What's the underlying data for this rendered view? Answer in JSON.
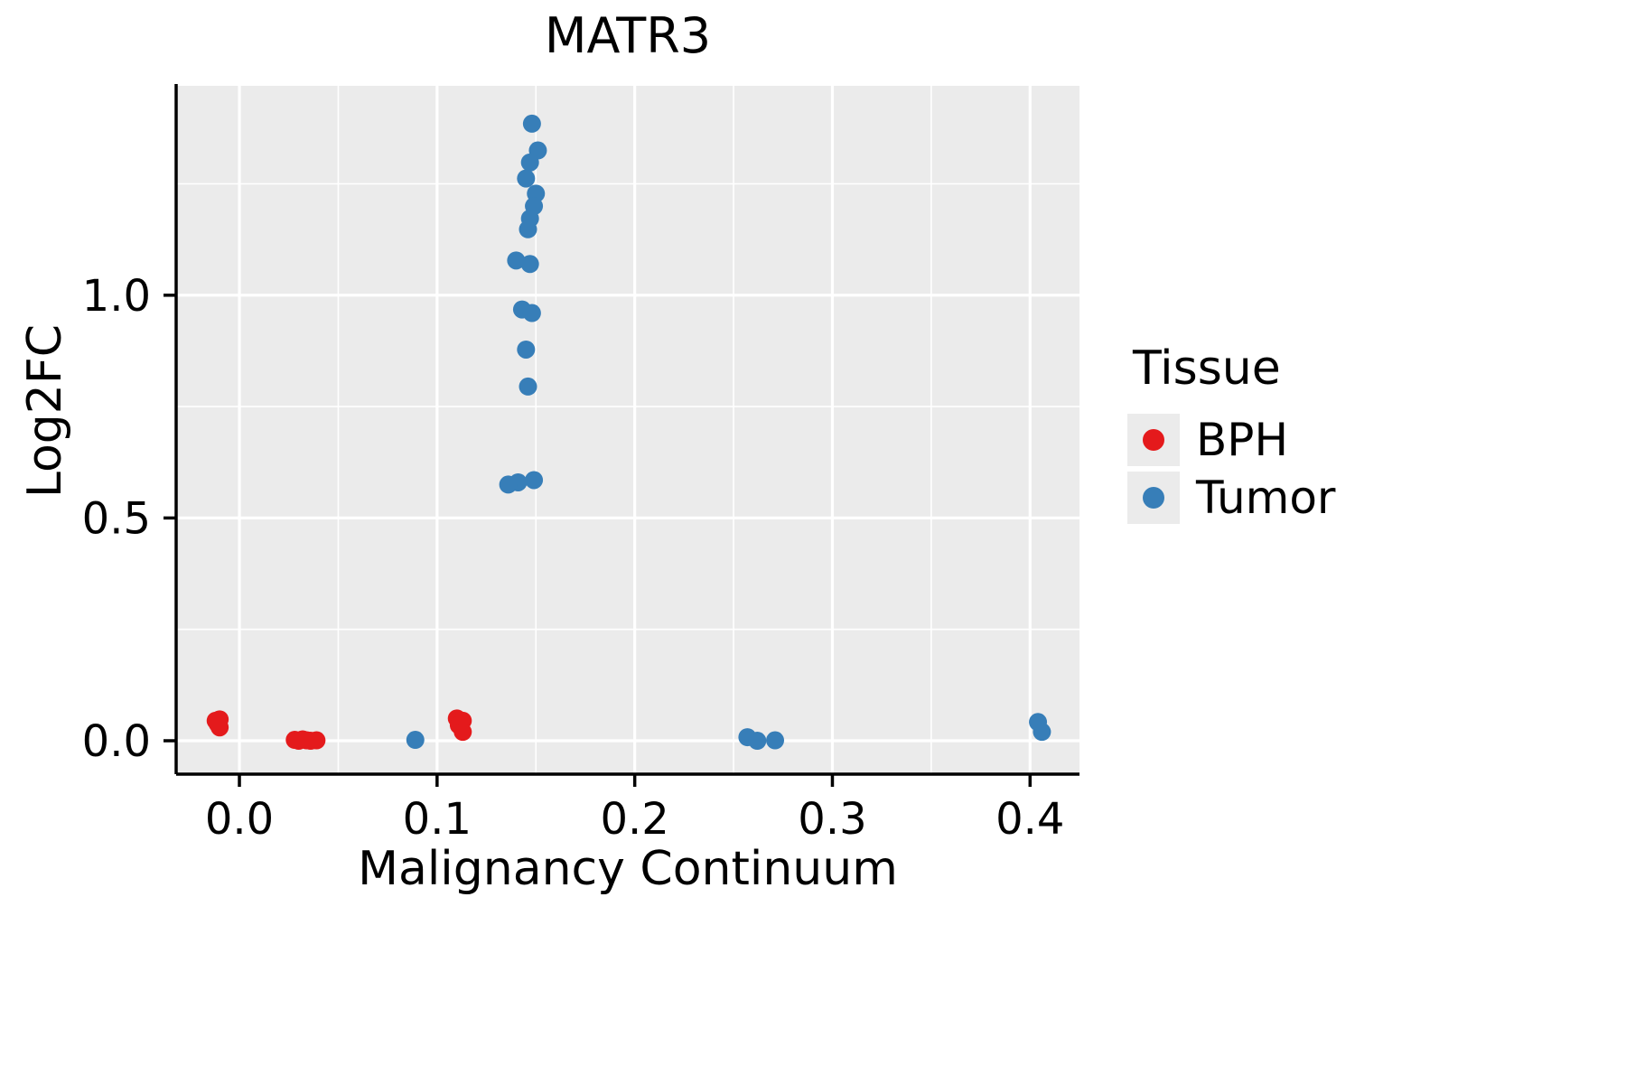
{
  "chart_data": {
    "type": "scatter",
    "title": "MATR3",
    "xlabel": "Malignancy Continuum",
    "ylabel": "Log2FC",
    "xlim": [
      -0.032,
      0.425
    ],
    "ylim": [
      -0.075,
      1.47
    ],
    "x_ticks": [
      0.0,
      0.1,
      0.2,
      0.3,
      0.4
    ],
    "x_tick_labels": [
      "0.0",
      "0.1",
      "0.2",
      "0.3",
      "0.4"
    ],
    "y_ticks": [
      0.0,
      0.5,
      1.0
    ],
    "y_tick_labels": [
      "0.0",
      "0.5",
      "1.0"
    ],
    "grid": "white major and minor gridlines on gray panel",
    "legend_position": "right",
    "series": [
      {
        "name": "BPH",
        "color": "#E41A1C",
        "points": [
          [
            -0.012,
            0.045
          ],
          [
            -0.01,
            0.048
          ],
          [
            -0.011,
            0.038
          ],
          [
            -0.01,
            0.03
          ],
          [
            0.028,
            0.002
          ],
          [
            0.03,
            0.0
          ],
          [
            0.032,
            0.003
          ],
          [
            0.034,
            0.001
          ],
          [
            0.036,
            0.0
          ],
          [
            0.039,
            0.001
          ],
          [
            0.11,
            0.05
          ],
          [
            0.113,
            0.045
          ],
          [
            0.111,
            0.035
          ],
          [
            0.113,
            0.02
          ]
        ]
      },
      {
        "name": "Tumor",
        "color": "#377EB8",
        "points": [
          [
            0.089,
            0.002
          ],
          [
            0.148,
            1.385
          ],
          [
            0.151,
            1.325
          ],
          [
            0.147,
            1.298
          ],
          [
            0.145,
            1.262
          ],
          [
            0.15,
            1.228
          ],
          [
            0.149,
            1.2
          ],
          [
            0.147,
            1.172
          ],
          [
            0.146,
            1.148
          ],
          [
            0.14,
            1.078
          ],
          [
            0.147,
            1.07
          ],
          [
            0.143,
            0.968
          ],
          [
            0.148,
            0.96
          ],
          [
            0.145,
            0.878
          ],
          [
            0.146,
            0.795
          ],
          [
            0.149,
            0.585
          ],
          [
            0.141,
            0.58
          ],
          [
            0.136,
            0.575
          ],
          [
            0.257,
            0.008
          ],
          [
            0.262,
            0.0
          ],
          [
            0.271,
            0.001
          ],
          [
            0.404,
            0.042
          ],
          [
            0.406,
            0.02
          ]
        ]
      }
    ]
  },
  "legend": {
    "title": "Tissue",
    "items": [
      {
        "label": "BPH",
        "color": "#E41A1C"
      },
      {
        "label": "Tumor",
        "color": "#377EB8"
      }
    ]
  },
  "colors": {
    "background": "#FFFFFF",
    "panel_bg": "#EBEBEB",
    "grid_major": "#FFFFFF",
    "grid_minor": "#FFFFFF",
    "axis": "#000000",
    "text": "#000000"
  }
}
